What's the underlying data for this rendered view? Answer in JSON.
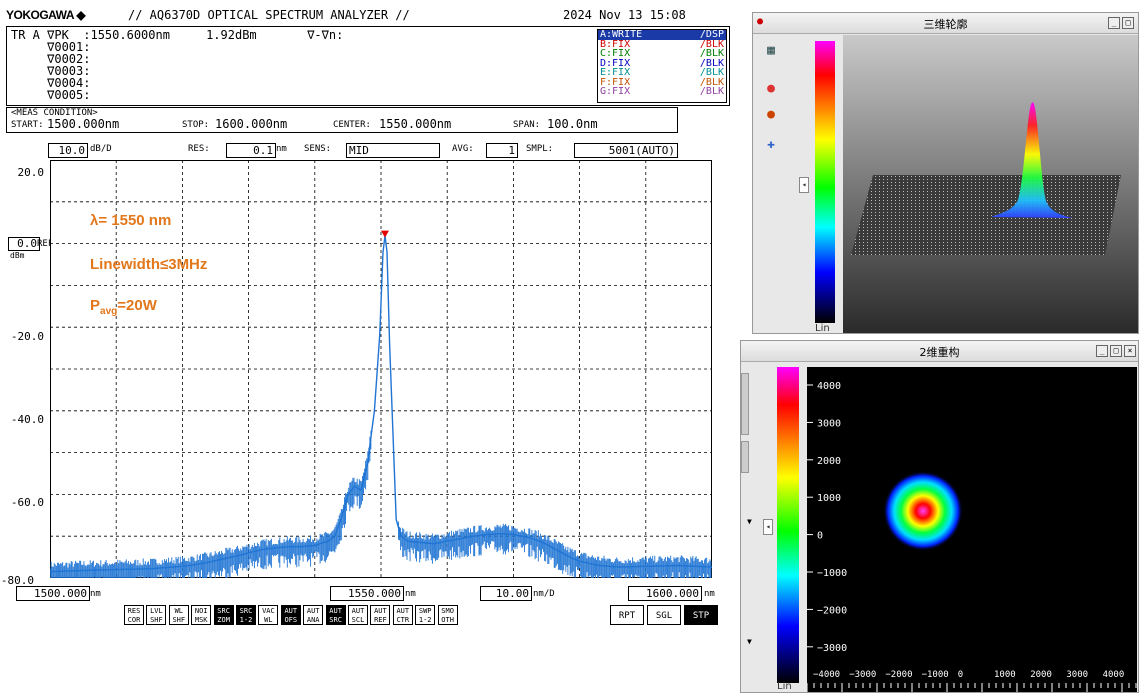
{
  "osa": {
    "brand": "YOKOGAWA ◆",
    "model": "// AQ6370D OPTICAL SPECTRUM ANALYZER //",
    "datetime": "2024 Nov 13 15:08",
    "marker_lines": [
      "TR A ∇PK  :1550.6000nm     1.92dBm       ∇-∇n:",
      "     ∇0001:",
      "     ∇0002:",
      "     ∇0003:",
      "     ∇0004:",
      "     ∇0005:"
    ],
    "traces": [
      {
        "state": "A:WRITE",
        "mode": "/DSP",
        "color": "#ffffff",
        "active": true
      },
      {
        "state": "B:FIX",
        "mode": "/BLK",
        "color": "#d00000"
      },
      {
        "state": "C:FIX",
        "mode": "/BLK",
        "color": "#008000"
      },
      {
        "state": "D:FIX",
        "mode": "/BLK",
        "color": "#0000c0"
      },
      {
        "state": "E:FIX",
        "mode": "/BLK",
        "color": "#009090"
      },
      {
        "state": "F:FIX",
        "mode": "/BLK",
        "color": "#c05000"
      },
      {
        "state": "G:FIX",
        "mode": "/BLK",
        "color": "#9040a0"
      }
    ],
    "meas": {
      "caption": "<MEAS CONDITION>",
      "start_label": "START:",
      "start": "1500.000nm",
      "stop_label": "STOP:",
      "stop": "1600.000nm",
      "center_label": "CENTER:",
      "center": "1550.000nm",
      "span_label": "SPAN:",
      "span": "100.0nm"
    },
    "settings": {
      "scale": "10.0",
      "scale_unit": "dB/D",
      "res_label": "RES:",
      "res": "0.1",
      "res_unit": "nm",
      "sens_label": "SENS:",
      "sens": "MID",
      "avg_label": "AVG:",
      "avg": "1",
      "smpl_label": "SMPL:",
      "smpl": "5001(AUTO)"
    },
    "ref": {
      "value": "0.0",
      "label": "REF",
      "unit": "dBm"
    },
    "bottom": {
      "start": "1500.000",
      "start_unit": "nm",
      "center": "1550.000",
      "center_unit": "nm",
      "span_div": "10.00",
      "span_div_unit": "nm/D",
      "stop": "1600.000",
      "stop_unit": "nm"
    },
    "softkeys": [
      [
        "RES",
        "COR"
      ],
      [
        "LVL",
        "SHF"
      ],
      [
        "WL",
        "SHF"
      ],
      [
        "NOI",
        "MSK"
      ],
      [
        "SRC",
        "ZOM"
      ],
      [
        "SRC",
        "1-2"
      ],
      [
        "VAC",
        "WL"
      ],
      [
        "AUT",
        "OFS"
      ],
      [
        "AUT",
        "ANA"
      ],
      [
        "AUT",
        "SRC"
      ],
      [
        "AUT",
        "SCL"
      ],
      [
        "AUT",
        "REF"
      ],
      [
        "AUT",
        "CTR"
      ],
      [
        "SWP",
        "1-2"
      ],
      [
        "SMO",
        "OTH"
      ]
    ],
    "softkeys_inverted": [
      4,
      5,
      7,
      9
    ],
    "buttons": {
      "rpt": "RPT",
      "sgl": "SGL",
      "stp": "STP"
    },
    "annotations": {
      "wavelength": "λ= 1550 nm",
      "linewidth": "Linewidth≤3MHz",
      "pavg_p": "P",
      "pavg_sub": "avg",
      "pavg_rest": "=20W",
      "color": "#e2771b"
    }
  },
  "chart_data": {
    "type": "line",
    "xlim": [
      1500,
      1600
    ],
    "ylim": [
      -80,
      20
    ],
    "ytick_labels": [
      "20.0",
      "0.0",
      "-20.0",
      "-40.0",
      "-60.0",
      "-80.0"
    ],
    "yticks": [
      20,
      0,
      -20,
      -40,
      -60,
      -80
    ],
    "grid": true,
    "line_color": "#1f74d4",
    "peak": {
      "x": 1550.6,
      "y": 1.92,
      "marker_color": "#e00000"
    },
    "points": [
      [
        1500,
        -78.5
      ],
      [
        1505,
        -78.2
      ],
      [
        1510,
        -78
      ],
      [
        1515,
        -77.8
      ],
      [
        1520,
        -77.2
      ],
      [
        1522,
        -76.8
      ],
      [
        1524,
        -76.2
      ],
      [
        1526,
        -75.5
      ],
      [
        1528,
        -74.8
      ],
      [
        1530,
        -74
      ],
      [
        1532,
        -73.2
      ],
      [
        1534,
        -72.8
      ],
      [
        1536,
        -72.5
      ],
      [
        1538,
        -72.5
      ],
      [
        1540,
        -72.2
      ],
      [
        1542,
        -71.2
      ],
      [
        1543,
        -70
      ],
      [
        1544,
        -66
      ],
      [
        1545,
        -60
      ],
      [
        1546,
        -58
      ],
      [
        1547,
        -59
      ],
      [
        1548,
        -52
      ],
      [
        1549,
        -40
      ],
      [
        1549.8,
        -22
      ],
      [
        1550.3,
        -2
      ],
      [
        1550.6,
        1.92
      ],
      [
        1550.9,
        -2
      ],
      [
        1551.3,
        -24
      ],
      [
        1551.8,
        -45
      ],
      [
        1552.3,
        -66
      ],
      [
        1553,
        -70
      ],
      [
        1554,
        -71.2
      ],
      [
        1556,
        -71.5
      ],
      [
        1558,
        -71.8
      ],
      [
        1560,
        -71.2
      ],
      [
        1562,
        -70.6
      ],
      [
        1564,
        -70
      ],
      [
        1566,
        -69.6
      ],
      [
        1568,
        -69.4
      ],
      [
        1570,
        -69.6
      ],
      [
        1572,
        -70.2
      ],
      [
        1574,
        -71.2
      ],
      [
        1576,
        -72.8
      ],
      [
        1578,
        -74.6
      ],
      [
        1580,
        -76
      ],
      [
        1583,
        -77
      ],
      [
        1586,
        -77.4
      ],
      [
        1590,
        -77.2
      ],
      [
        1595,
        -77
      ],
      [
        1600,
        -77.4
      ]
    ]
  },
  "win3d": {
    "title": "三维轮廓",
    "colorbar_label": "Lin",
    "buttons": [
      "_",
      "□"
    ]
  },
  "win2d": {
    "title": "2维重构",
    "colorbar_label": "Lin",
    "buttons": [
      "_",
      "□",
      "×"
    ],
    "y_ticks": [
      "4000",
      "3000",
      "2000",
      "1000",
      "0",
      "−1000",
      "−2000",
      "−3000"
    ],
    "x_ticks": [
      "−4000",
      "−3000",
      "−2000",
      "−1000",
      "0",
      "1000",
      "2000",
      "3000",
      "4000"
    ]
  }
}
